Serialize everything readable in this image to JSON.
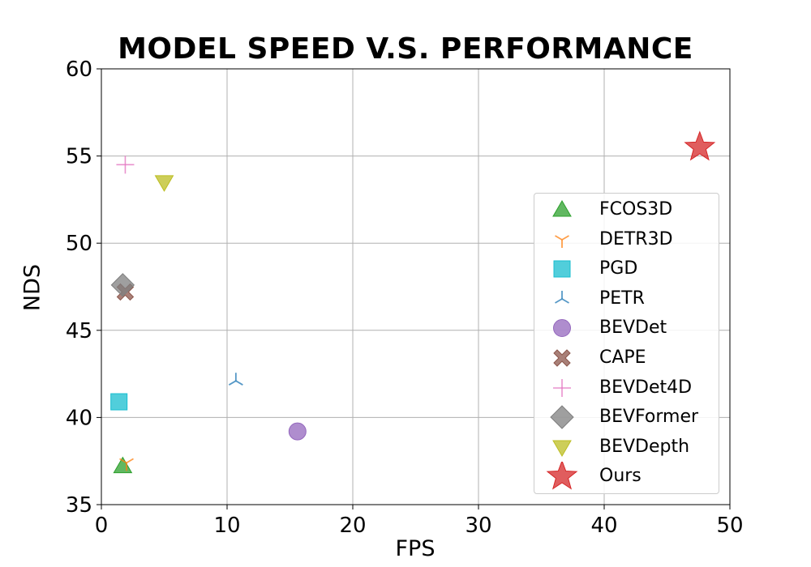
{
  "chart_data": {
    "type": "scatter",
    "title": "MODEL SPEED V.S. PERFORMANCE",
    "xlabel": "FPS",
    "ylabel": "NDS",
    "xlim": [
      0,
      50
    ],
    "ylim": [
      35,
      60
    ],
    "xticks": [
      "0",
      "10",
      "20",
      "30",
      "40",
      "50"
    ],
    "yticks": [
      "35",
      "40",
      "45",
      "50",
      "55",
      "60"
    ],
    "grid": true,
    "legend_position": "center-right",
    "series": [
      {
        "name": "FCOS3D",
        "x": 1.7,
        "y": 37.2,
        "marker": "triangle-up",
        "color": "#2ca02c"
      },
      {
        "name": "DETR3D",
        "x": 2.0,
        "y": 37.4,
        "marker": "tri-down",
        "color": "#ff7f0e"
      },
      {
        "name": "PGD",
        "x": 1.4,
        "y": 40.9,
        "marker": "square",
        "color": "#17becf"
      },
      {
        "name": "PETR",
        "x": 10.7,
        "y": 42.1,
        "marker": "tri-up",
        "color": "#1f77b4"
      },
      {
        "name": "BEVDet",
        "x": 15.6,
        "y": 39.2,
        "marker": "circle",
        "color": "#9467bd"
      },
      {
        "name": "CAPE",
        "x": 1.9,
        "y": 47.2,
        "marker": "x-filled",
        "color": "#8c564b"
      },
      {
        "name": "BEVDet4D",
        "x": 1.9,
        "y": 54.5,
        "marker": "plus",
        "color": "#e377c2"
      },
      {
        "name": "BEVFormer",
        "x": 1.7,
        "y": 47.6,
        "marker": "diamond",
        "color": "#7f7f7f"
      },
      {
        "name": "BEVDepth",
        "x": 5.0,
        "y": 53.5,
        "marker": "triangle-down",
        "color": "#bcbd22"
      },
      {
        "name": "Ours",
        "x": 47.6,
        "y": 55.5,
        "marker": "star",
        "color": "#d62728"
      }
    ]
  }
}
